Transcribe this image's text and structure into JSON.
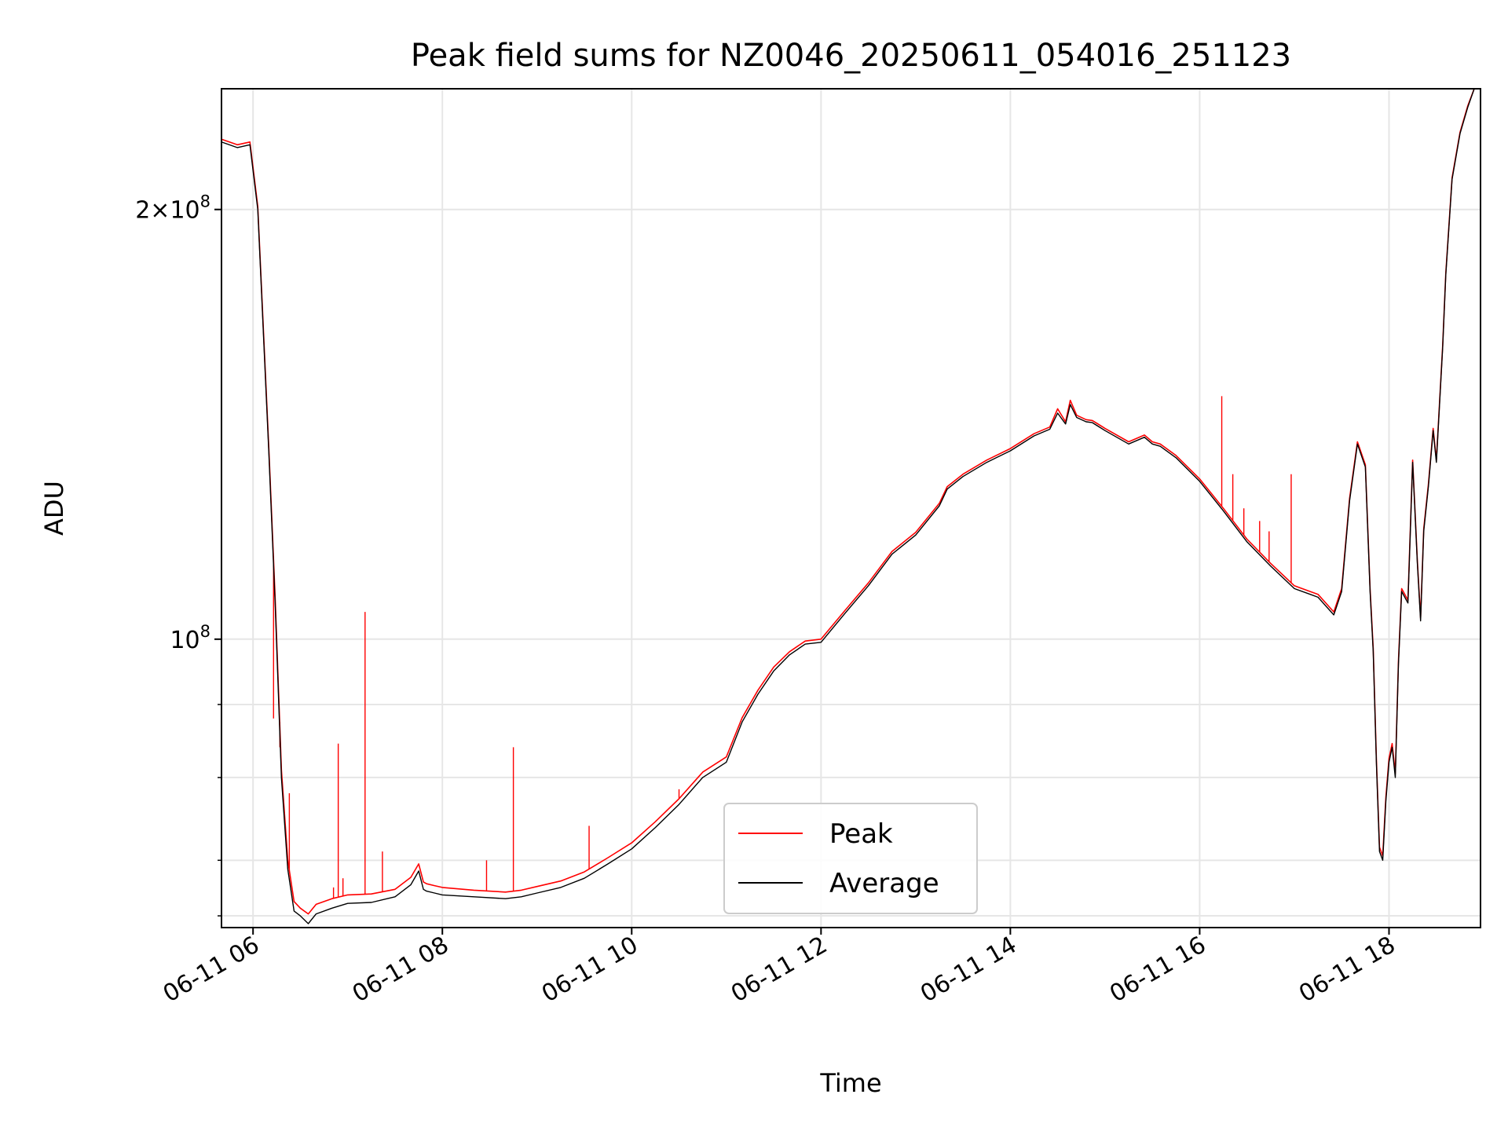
{
  "chart_data": {
    "type": "line",
    "title": "Peak field sums for NZ0046_20250611_054016_251123",
    "xlabel": "Time",
    "ylabel": "ADU",
    "x_scale": "time",
    "y_scale": "log",
    "xlim": [
      "06-11 05:40",
      "06-11 18:58"
    ],
    "ylim": [
      62800000,
      243000000
    ],
    "x_tick_labels": [
      "06-11 06",
      "06-11 08",
      "06-11 10",
      "06-11 12",
      "06-11 14",
      "06-11 16",
      "06-11 18"
    ],
    "y_major_tick_labels": [
      {
        "value": 100000000,
        "base": "10",
        "exp": "8",
        "mult": ""
      },
      {
        "value": 200000000,
        "base": "10",
        "exp": "8",
        "mult": "2×"
      }
    ],
    "y_minor_ticks": [
      64000000,
      70000000,
      80000000,
      90000000
    ],
    "grid": true,
    "legend_position": "lower center",
    "colors": {
      "peak": "#ff0000",
      "average": "#000000",
      "grid": "#e6e6e6"
    },
    "series": [
      {
        "name": "Average",
        "color": "#000000",
        "x": [
          "05:40",
          "05:50",
          "05:58",
          "06:03",
          "06:07",
          "06:10",
          "06:14",
          "06:18",
          "06:22",
          "06:26",
          "06:30",
          "06:35",
          "06:40",
          "06:50",
          "07:00",
          "07:15",
          "07:30",
          "07:40",
          "07:45",
          "07:48",
          "07:50",
          "07:55",
          "08:00",
          "08:20",
          "08:40",
          "08:50",
          "09:00",
          "09:15",
          "09:30",
          "09:45",
          "10:00",
          "10:15",
          "10:30",
          "10:45",
          "11:00",
          "11:10",
          "11:20",
          "11:30",
          "11:40",
          "11:50",
          "12:00",
          "12:15",
          "12:30",
          "12:45",
          "13:00",
          "13:15",
          "13:20",
          "13:30",
          "13:45",
          "14:00",
          "14:15",
          "14:25",
          "14:30",
          "14:35",
          "14:38",
          "14:42",
          "14:48",
          "14:52",
          "15:00",
          "15:15",
          "15:25",
          "15:30",
          "15:35",
          "15:45",
          "16:00",
          "16:15",
          "16:30",
          "16:45",
          "17:00",
          "17:10",
          "17:15",
          "17:25",
          "17:30",
          "17:35",
          "17:40",
          "17:45",
          "17:48",
          "17:50",
          "17:52",
          "17:54",
          "17:56",
          "17:58",
          "18:00",
          "18:02",
          "18:04",
          "18:06",
          "18:08",
          "18:12",
          "18:15",
          "18:18",
          "18:20",
          "18:22",
          "18:25",
          "18:28",
          "18:30",
          "18:34",
          "18:36",
          "18:40",
          "18:45",
          "18:50",
          "18:54",
          "18:58"
        ],
        "y": [
          223000000,
          221000000,
          222000000,
          200000000,
          160000000,
          135000000,
          106000000,
          80000000,
          69000000,
          64500000,
          64000000,
          63200000,
          64200000,
          64800000,
          65300000,
          65400000,
          66000000,
          67300000,
          68800000,
          66800000,
          66600000,
          66400000,
          66200000,
          66000000,
          65800000,
          66000000,
          66400000,
          67000000,
          68000000,
          69600000,
          71300000,
          73800000,
          76600000,
          80000000,
          82000000,
          87500000,
          91500000,
          95000000,
          97500000,
          99200000,
          99500000,
          104200000,
          109000000,
          114700000,
          118300000,
          124000000,
          127400000,
          130000000,
          133000000,
          135500000,
          138800000,
          140300000,
          144000000,
          141500000,
          146000000,
          143000000,
          142000000,
          141800000,
          140000000,
          137000000,
          138500000,
          137000000,
          136500000,
          134000000,
          129000000,
          123000000,
          117000000,
          112500000,
          108500000,
          107500000,
          107000000,
          104000000,
          108000000,
          125000000,
          137000000,
          132000000,
          108000000,
          98000000,
          82000000,
          71000000,
          70000000,
          77000000,
          82000000,
          84000000,
          80000000,
          96000000,
          108000000,
          106000000,
          133000000,
          113000000,
          103000000,
          119000000,
          128000000,
          140000000,
          133000000,
          160000000,
          180000000,
          210000000,
          226000000,
          236000000,
          243000000,
          243000000
        ]
      },
      {
        "name": "Peak",
        "color": "#ff0000",
        "x": [
          "05:40",
          "05:50",
          "05:58",
          "06:03",
          "06:07",
          "06:10",
          "06:14",
          "06:18",
          "06:22",
          "06:26",
          "06:30",
          "06:35",
          "06:40",
          "06:50",
          "07:00",
          "07:15",
          "07:30",
          "07:40",
          "07:45",
          "07:48",
          "07:50",
          "07:55",
          "08:00",
          "08:20",
          "08:40",
          "08:50",
          "09:00",
          "09:15",
          "09:30",
          "09:45",
          "10:00",
          "10:15",
          "10:30",
          "10:45",
          "11:00",
          "11:10",
          "11:20",
          "11:30",
          "11:40",
          "11:50",
          "12:00",
          "12:15",
          "12:30",
          "12:45",
          "13:00",
          "13:15",
          "13:20",
          "13:30",
          "13:45",
          "14:00",
          "14:15",
          "14:25",
          "14:30",
          "14:35",
          "14:38",
          "14:42",
          "14:48",
          "14:52",
          "15:00",
          "15:15",
          "15:25",
          "15:30",
          "15:35",
          "15:45",
          "16:00",
          "16:15",
          "16:30",
          "16:45",
          "17:00",
          "17:10",
          "17:15",
          "17:25",
          "17:30",
          "17:35",
          "17:40",
          "17:45",
          "17:48",
          "17:50",
          "17:52",
          "17:54",
          "17:56",
          "17:58",
          "18:00",
          "18:02",
          "18:04",
          "18:06",
          "18:08",
          "18:12",
          "18:15",
          "18:18",
          "18:20",
          "18:22",
          "18:25",
          "18:28",
          "18:30",
          "18:34",
          "18:36",
          "18:40",
          "18:45",
          "18:50",
          "18:54",
          "18:58"
        ],
        "y": [
          224000000,
          222000000,
          223000000,
          201000000,
          161000000,
          136000000,
          107000000,
          81000000,
          70000000,
          65500000,
          64800000,
          64200000,
          65200000,
          65800000,
          66200000,
          66300000,
          66800000,
          68100000,
          69600000,
          67600000,
          67400000,
          67200000,
          67000000,
          66700000,
          66500000,
          66700000,
          67100000,
          67700000,
          68700000,
          70300000,
          72000000,
          74500000,
          77300000,
          80700000,
          82700000,
          88100000,
          92100000,
          95600000,
          98000000,
          99700000,
          100000000,
          104700000,
          109500000,
          115200000,
          118800000,
          124500000,
          127900000,
          130500000,
          133500000,
          136000000,
          139300000,
          140800000,
          145000000,
          142000000,
          147000000,
          143500000,
          142500000,
          142300000,
          140500000,
          137500000,
          139000000,
          137500000,
          137000000,
          134500000,
          129500000,
          123500000,
          117500000,
          113000000,
          109000000,
          108000000,
          107500000,
          104500000,
          108500000,
          125500000,
          137500000,
          132500000,
          108500000,
          98500000,
          82500000,
          71500000,
          70500000,
          77500000,
          82500000,
          84500000,
          80500000,
          96500000,
          108500000,
          106500000,
          133500000,
          113500000,
          103500000,
          119500000,
          128500000,
          140500000,
          133500000,
          160500000,
          180500000,
          210500000,
          226500000,
          236500000,
          243000000,
          243000000
        ],
        "spikes": [
          {
            "x": "06:13",
            "y": 88000000
          },
          {
            "x": "06:17",
            "y": 84000000
          },
          {
            "x": "06:23",
            "y": 78000000
          },
          {
            "x": "06:51",
            "y": 67000000
          },
          {
            "x": "06:54",
            "y": 84500000
          },
          {
            "x": "06:57",
            "y": 68000000
          },
          {
            "x": "07:11",
            "y": 104500000
          },
          {
            "x": "07:22",
            "y": 71000000
          },
          {
            "x": "08:28",
            "y": 70000000
          },
          {
            "x": "08:45",
            "y": 84000000
          },
          {
            "x": "09:33",
            "y": 74000000
          },
          {
            "x": "10:30",
            "y": 78500000
          },
          {
            "x": "16:14",
            "y": 148000000
          },
          {
            "x": "16:21",
            "y": 130500000
          },
          {
            "x": "16:28",
            "y": 123500000
          },
          {
            "x": "16:38",
            "y": 121000000
          },
          {
            "x": "16:44",
            "y": 119000000
          },
          {
            "x": "16:58",
            "y": 130500000
          }
        ]
      }
    ]
  }
}
